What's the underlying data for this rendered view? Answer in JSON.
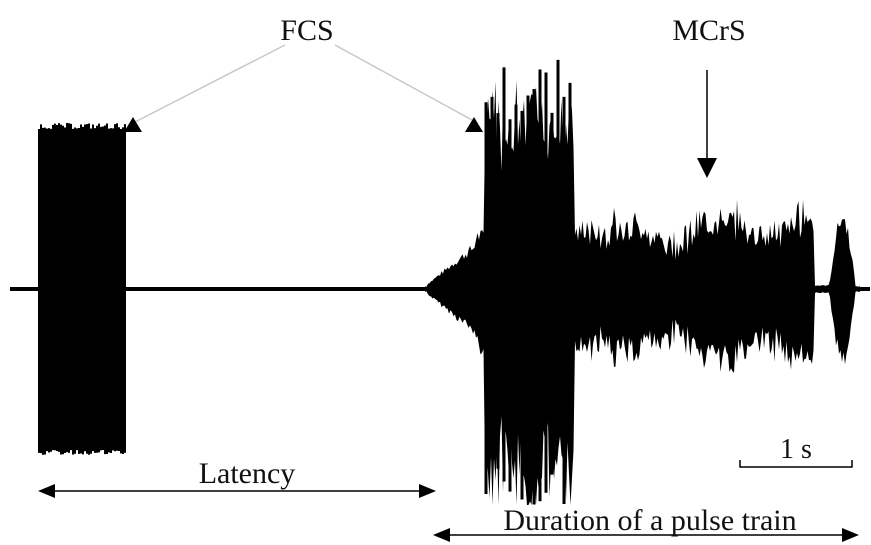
{
  "labels": {
    "fcs": "FCS",
    "mcrs": "MCrS",
    "latency": "Latency",
    "duration": "Duration of a pulse train",
    "scale_bar": "1 s"
  },
  "colors": {
    "signal": "#000000",
    "pointer_line": "#c8c8c8",
    "text": "#111111",
    "background": "#ffffff"
  }
}
